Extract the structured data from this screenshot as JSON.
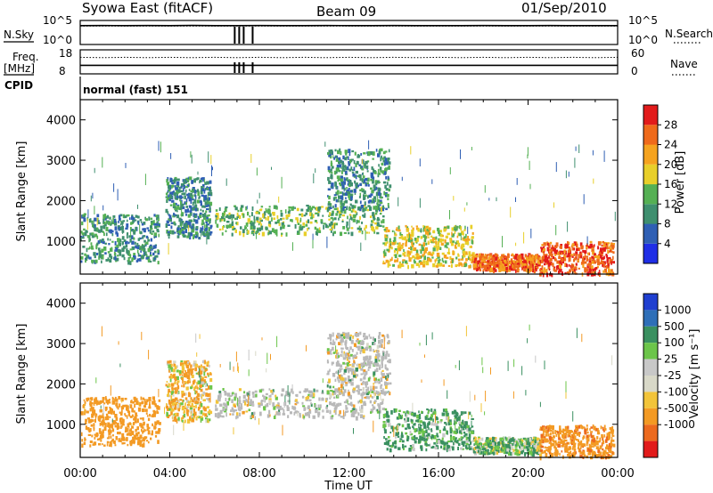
{
  "header": {
    "station": "Syowa East (fitACF)",
    "beam": "Beam 09",
    "date": "01/Sep/2010"
  },
  "left_labels": {
    "nsky": "N.Sky",
    "freq": "Freq.",
    "mhz": "[MHz]",
    "cpid": "CPID"
  },
  "right_labels": {
    "nsearch": "N.Search",
    "nave": "Nave"
  },
  "cpid_text": "normal (fast) 151",
  "colors": {
    "power_scale": [
      "#1f2ee6",
      "#2f5fb4",
      "#3f8f6f",
      "#55b054",
      "#e8cf2a",
      "#f5a31f",
      "#ef6a1b",
      "#e21b1b"
    ],
    "velocity_scale": [
      "#1f3fd0",
      "#2f6fb8",
      "#3a9060",
      "#6cc54a",
      "#c8c8c8",
      "#d8d8c8",
      "#f2c43a",
      "#f39a24",
      "#ec6a1e",
      "#e21b1b"
    ],
    "ground_scatter": "#b9b9b9"
  },
  "chart_data": [
    {
      "type": "line",
      "title": "N.Sky / N.Search",
      "y_left_ticks": [
        "10^5",
        "10^0"
      ],
      "y_right_ticks": [
        "10^5",
        "10^0"
      ],
      "x_range_hours": [
        0,
        24
      ],
      "series": [
        {
          "name": "N.Sky",
          "values_log10": [
            4.6,
            4.62,
            4.6,
            4.61,
            4.6,
            4.63,
            4.6,
            4.6,
            4.62,
            4.6,
            4.6,
            4.61,
            4.6,
            4.6,
            4.62,
            4.6,
            4.6,
            4.6,
            4.61,
            4.6,
            4.6,
            4.62,
            4.6,
            4.6,
            4.6
          ]
        },
        {
          "name": "N.Search",
          "values_log10": [
            4.5,
            4.5,
            4.5,
            4.5,
            4.5,
            4.5,
            4.5,
            4.5,
            4.5,
            4.5,
            4.5,
            4.5,
            4.5,
            4.5,
            4.5,
            4.5,
            4.5,
            4.5,
            4.5,
            4.5,
            4.5,
            4.5,
            4.5,
            4.5,
            4.5
          ]
        }
      ]
    },
    {
      "type": "line",
      "title": "Freq. / Nave",
      "y_left_ticks": [
        "18",
        "8"
      ],
      "y_right_ticks": [
        "60",
        "0"
      ],
      "x_range_hours": [
        0,
        24
      ],
      "series": [
        {
          "name": "Freq.",
          "values": [
            11.6,
            11.6,
            11.6,
            11.6,
            11.6,
            11.6,
            11.6,
            11.6,
            11.6,
            11.6,
            11.6,
            11.6,
            11.6,
            11.6,
            11.6,
            11.6,
            11.6,
            11.6,
            11.6,
            11.6,
            11.6,
            11.6,
            11.6,
            11.6,
            11.6
          ]
        },
        {
          "name": "Nave",
          "values": [
            44,
            43,
            44,
            43,
            44,
            43,
            44,
            43,
            44,
            43,
            44,
            43,
            44,
            43,
            44,
            43,
            44,
            43,
            44,
            43,
            44,
            43,
            44,
            43,
            44
          ]
        }
      ]
    },
    {
      "type": "heatmap",
      "title": "Power",
      "ylabel": "Slant Range [km]",
      "y_ticks": [
        1000,
        2000,
        3000,
        4000
      ],
      "ylim": [
        180,
        4500
      ],
      "colorbar_label": "Power [dB]",
      "colorbar_ticks": [
        4,
        8,
        12,
        16,
        20,
        24,
        28
      ],
      "colorbar_range": [
        0,
        32
      ],
      "echo_regions": [
        {
          "t": [
            0.0,
            3.5
          ],
          "r": [
            500,
            1700
          ],
          "power_db": 10
        },
        {
          "t": [
            3.8,
            5.8
          ],
          "r": [
            1100,
            2600
          ],
          "power_db": 9
        },
        {
          "t": [
            6.0,
            13.5
          ],
          "r": [
            1200,
            1900
          ],
          "power_db": 14
        },
        {
          "t": [
            11.0,
            13.8
          ],
          "r": [
            1800,
            3300
          ],
          "power_db": 10
        },
        {
          "t": [
            13.5,
            17.5
          ],
          "r": [
            400,
            1400
          ],
          "power_db": 18
        },
        {
          "t": [
            17.5,
            20.5
          ],
          "r": [
            300,
            700
          ],
          "power_db": 26
        },
        {
          "t": [
            20.5,
            23.8
          ],
          "r": [
            200,
            1000
          ],
          "power_db": 27
        }
      ]
    },
    {
      "type": "heatmap",
      "title": "Velocity",
      "ylabel": "Slant Range [km]",
      "xlabel": "Time UT",
      "x_ticks": [
        "00:00",
        "04:00",
        "08:00",
        "12:00",
        "16:00",
        "20:00",
        "00:00"
      ],
      "y_ticks": [
        1000,
        2000,
        3000,
        4000
      ],
      "ylim": [
        180,
        4500
      ],
      "colorbar_label": "Velocity [m s⁻¹]",
      "colorbar_ticks": [
        1000,
        500,
        100,
        25,
        -25,
        -100,
        -500,
        -1000
      ],
      "echo_regions": [
        {
          "t": [
            0.0,
            3.5
          ],
          "r": [
            500,
            1700
          ],
          "velocity": -300
        },
        {
          "t": [
            3.8,
            5.8
          ],
          "r": [
            1100,
            2600
          ],
          "velocity": -80
        },
        {
          "t": [
            6.0,
            13.5
          ],
          "r": [
            1200,
            1900
          ],
          "velocity": 0
        },
        {
          "t": [
            11.0,
            13.8
          ],
          "r": [
            1800,
            3300
          ],
          "velocity": 0
        },
        {
          "t": [
            13.5,
            17.5
          ],
          "r": [
            400,
            1400
          ],
          "velocity": 150
        },
        {
          "t": [
            17.5,
            20.5
          ],
          "r": [
            300,
            700
          ],
          "velocity": 80
        },
        {
          "t": [
            20.5,
            23.8
          ],
          "r": [
            200,
            1000
          ],
          "velocity": -400
        }
      ]
    }
  ]
}
